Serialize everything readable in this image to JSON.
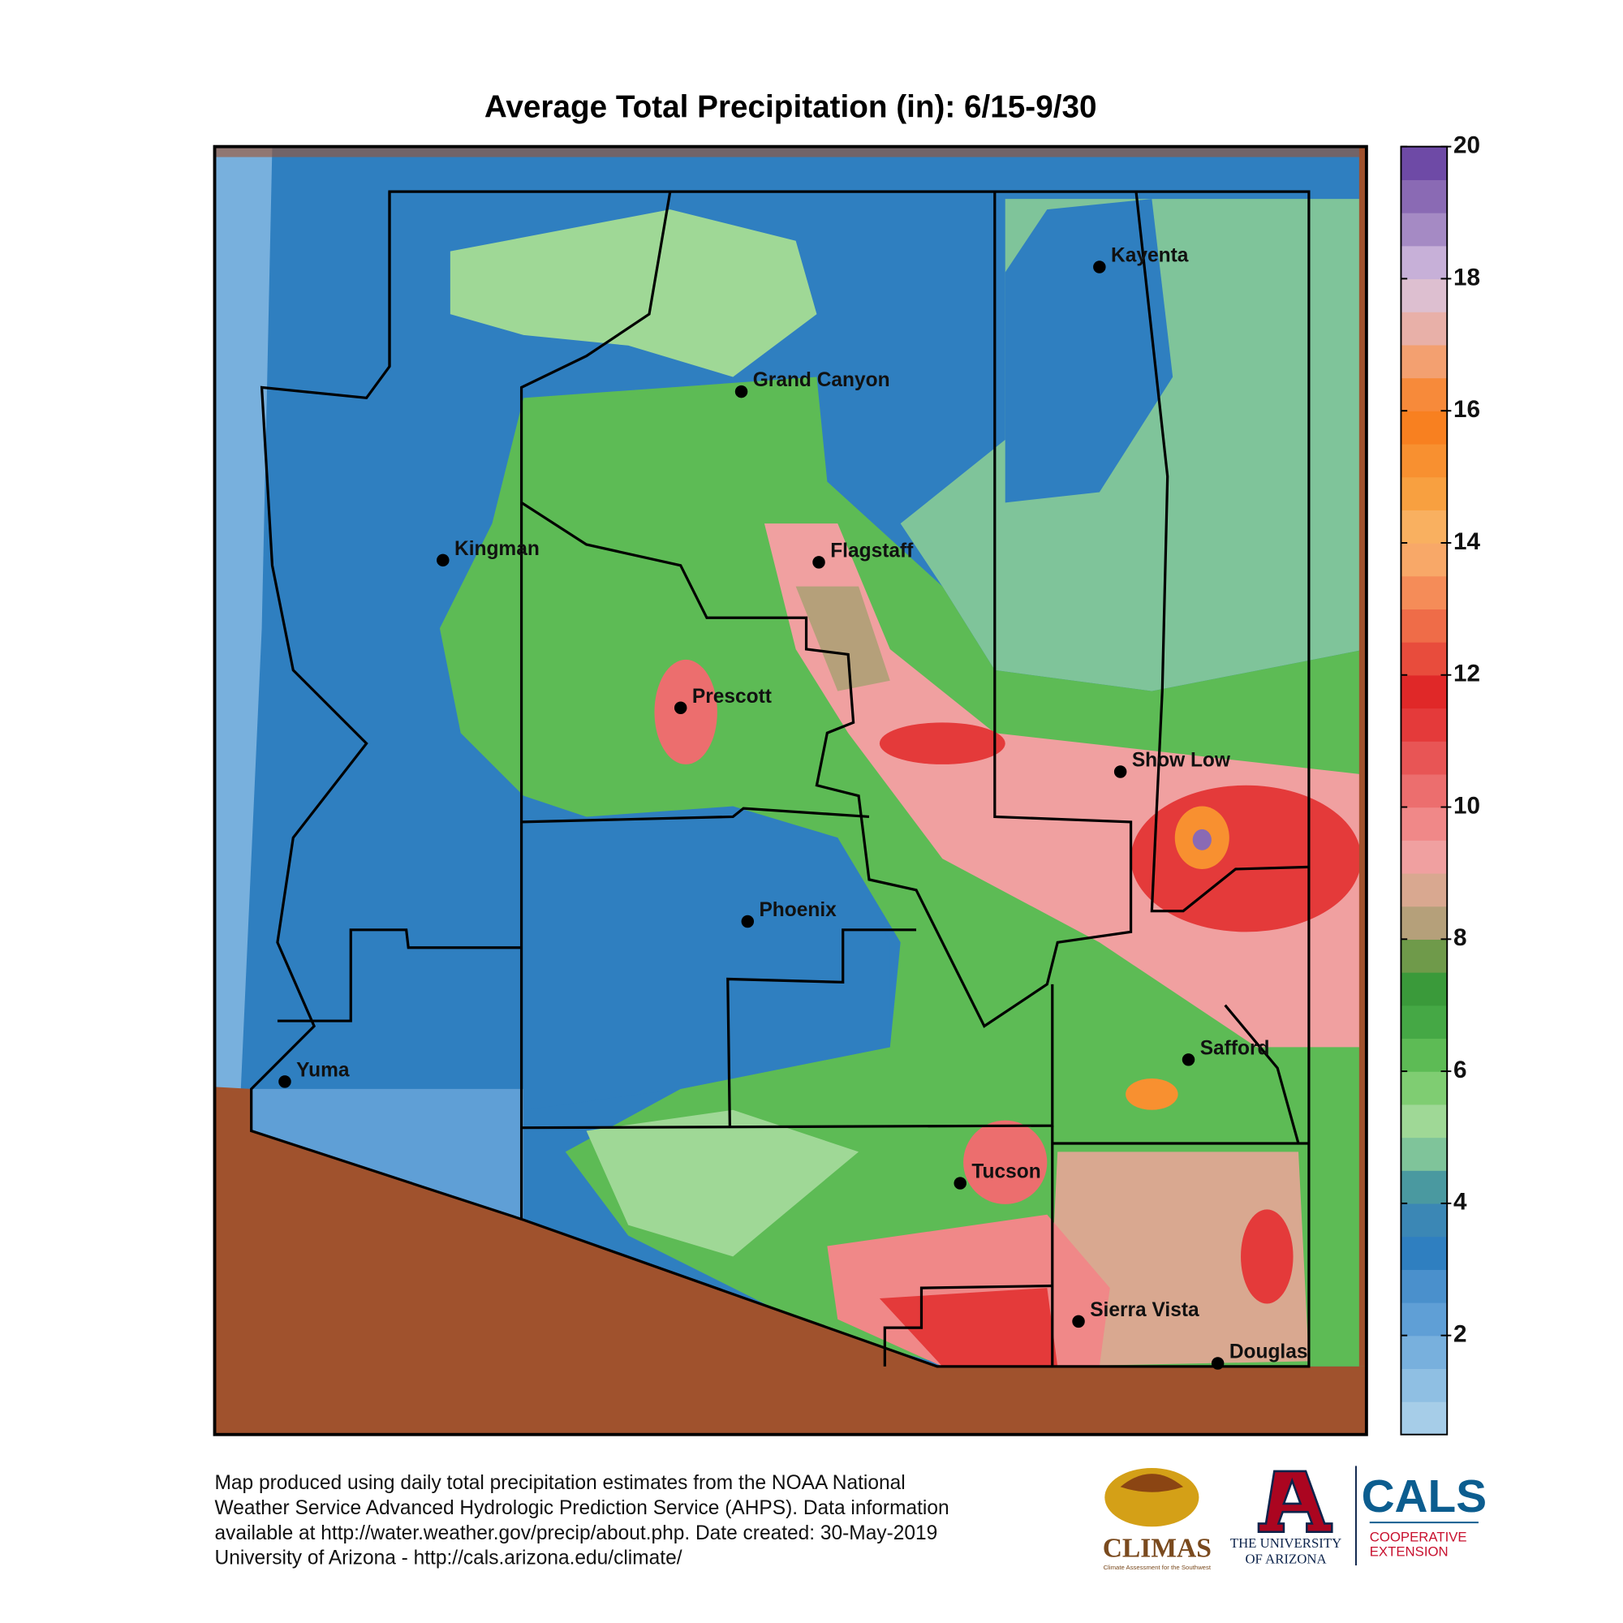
{
  "title": "Average Total Precipitation (in): 6/15-9/30",
  "cities": [
    "Kayenta",
    "Grand Canyon",
    "Kingman",
    "Flagstaff",
    "Prescott",
    "Show Low",
    "Phoenix",
    "Safford",
    "Yuma",
    "Tucson",
    "Sierra Vista",
    "Douglas"
  ],
  "colorbar": {
    "lim": [
      0.5,
      20
    ],
    "ticks": [
      2,
      4,
      6,
      8,
      10,
      12,
      14,
      16,
      18,
      20
    ],
    "colors": [
      "#a6cde8",
      "#8fbfe3",
      "#78b0dd",
      "#5f9fd6",
      "#4a90cc",
      "#2f7fc0",
      "#3b87b5",
      "#4a99a0",
      "#7fc49a",
      "#9fd896",
      "#7fcd72",
      "#5dbb55",
      "#45a845",
      "#3a9a3a",
      "#6f9a4a",
      "#b5a07a",
      "#d9a890",
      "#f0a0a0",
      "#f08888",
      "#ec6e6e",
      "#e85555",
      "#e43a3a",
      "#e02828",
      "#e84c3c",
      "#ef6c48",
      "#f58c58",
      "#f8a868",
      "#f9b060",
      "#f8a040",
      "#f89030",
      "#f88020",
      "#f78a3a",
      "#f3a070",
      "#e8b0a8",
      "#ddbfd0",
      "#c7b0d8",
      "#a58ac4",
      "#8a6ab4",
      "#6e4aa6"
    ]
  },
  "footer": {
    "lines": [
      "Map produced using daily total precipitation estimates from the NOAA National",
      "Weather Service Advanced Hydrologic Prediction Service (AHPS). Data information",
      "available at http://water.weather.gov/precip/about.php. Date created: 30-May-2019",
      "University of Arizona - http://cals.arizona.edu/climate/"
    ]
  },
  "logos": {
    "climas": "CLIMAS",
    "climas_tagline": "Climate Assessment for the Southwest",
    "university": [
      "THE UNIVERSITY",
      "OF ARIZONA"
    ],
    "cals": "CALS",
    "extension": [
      "COOPERATIVE",
      "EXTENSION"
    ]
  }
}
